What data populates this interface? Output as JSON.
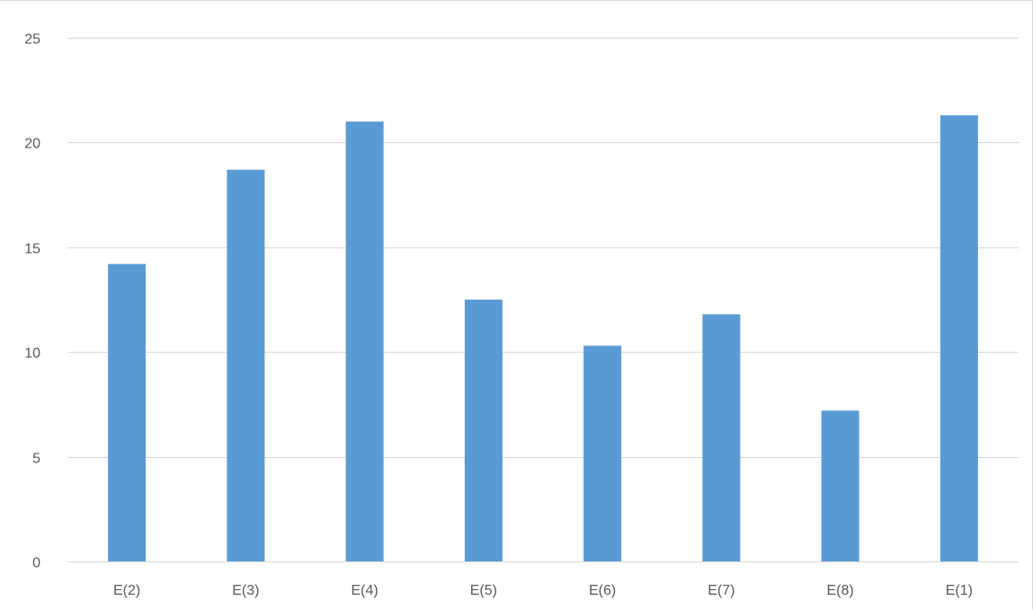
{
  "chart_data": {
    "type": "bar",
    "categories": [
      "E(2)",
      "E(3)",
      "E(4)",
      "E(5)",
      "E(6)",
      "E(7)",
      "E(8)",
      "E(1)"
    ],
    "values": [
      14.2,
      18.7,
      21.0,
      12.5,
      10.3,
      11.8,
      7.2,
      21.3
    ],
    "yticks": [
      "0",
      "5",
      "10",
      "15",
      "20",
      "25"
    ],
    "ylim": [
      0,
      25
    ],
    "grid": true,
    "colors": {
      "bar": "#5b9bd5",
      "grid": "#d9d9d9",
      "tick_text": "#595959"
    }
  }
}
